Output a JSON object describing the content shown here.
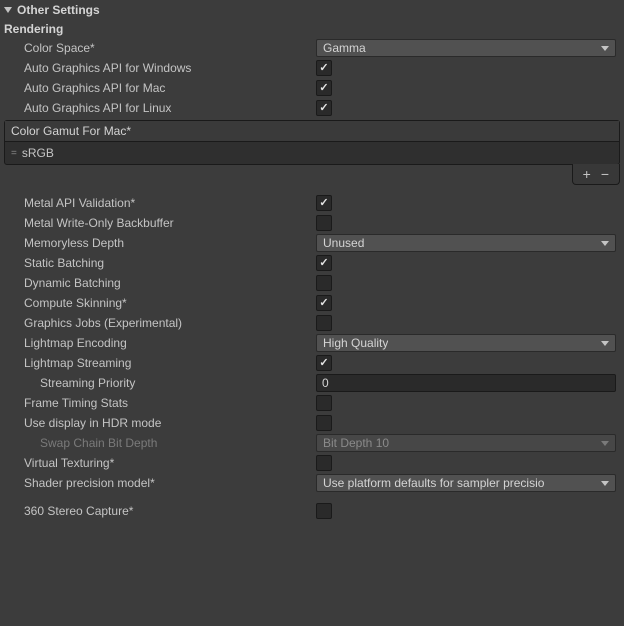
{
  "header": {
    "title": "Other Settings"
  },
  "rendering": {
    "title": "Rendering",
    "colorSpace": {
      "label": "Color Space*",
      "value": "Gamma"
    },
    "autoGraphicsWin": {
      "label": "Auto Graphics API  for Windows",
      "checked": true
    },
    "autoGraphicsMac": {
      "label": "Auto Graphics API  for Mac",
      "checked": true
    },
    "autoGraphicsLinux": {
      "label": "Auto Graphics API  for Linux",
      "checked": true
    },
    "colorGamut": {
      "label": "Color Gamut For Mac*",
      "item": "sRGB"
    },
    "metalValidation": {
      "label": "Metal API Validation*",
      "checked": true
    },
    "metalWriteOnly": {
      "label": "Metal Write-Only Backbuffer",
      "checked": false
    },
    "memorylessDepth": {
      "label": "Memoryless Depth",
      "value": "Unused"
    },
    "staticBatching": {
      "label": "Static Batching",
      "checked": true
    },
    "dynamicBatching": {
      "label": "Dynamic Batching",
      "checked": false
    },
    "computeSkinning": {
      "label": "Compute Skinning*",
      "checked": true
    },
    "graphicsJobs": {
      "label": "Graphics Jobs (Experimental)",
      "checked": false
    },
    "lightmapEncoding": {
      "label": "Lightmap Encoding",
      "value": "High Quality"
    },
    "lightmapStreaming": {
      "label": "Lightmap Streaming",
      "checked": true
    },
    "streamingPriority": {
      "label": "Streaming Priority",
      "value": "0"
    },
    "frameTiming": {
      "label": "Frame Timing Stats",
      "checked": false
    },
    "hdrMode": {
      "label": "Use display in HDR mode",
      "checked": false
    },
    "swapChain": {
      "label": "Swap Chain Bit Depth",
      "value": "Bit Depth 10"
    },
    "virtualTexturing": {
      "label": "Virtual Texturing*",
      "checked": false
    },
    "shaderPrecision": {
      "label": "Shader precision model*",
      "value": "Use platform defaults for sampler precisio"
    },
    "stereoCapture": {
      "label": "360 Stereo Capture*",
      "checked": false
    }
  }
}
